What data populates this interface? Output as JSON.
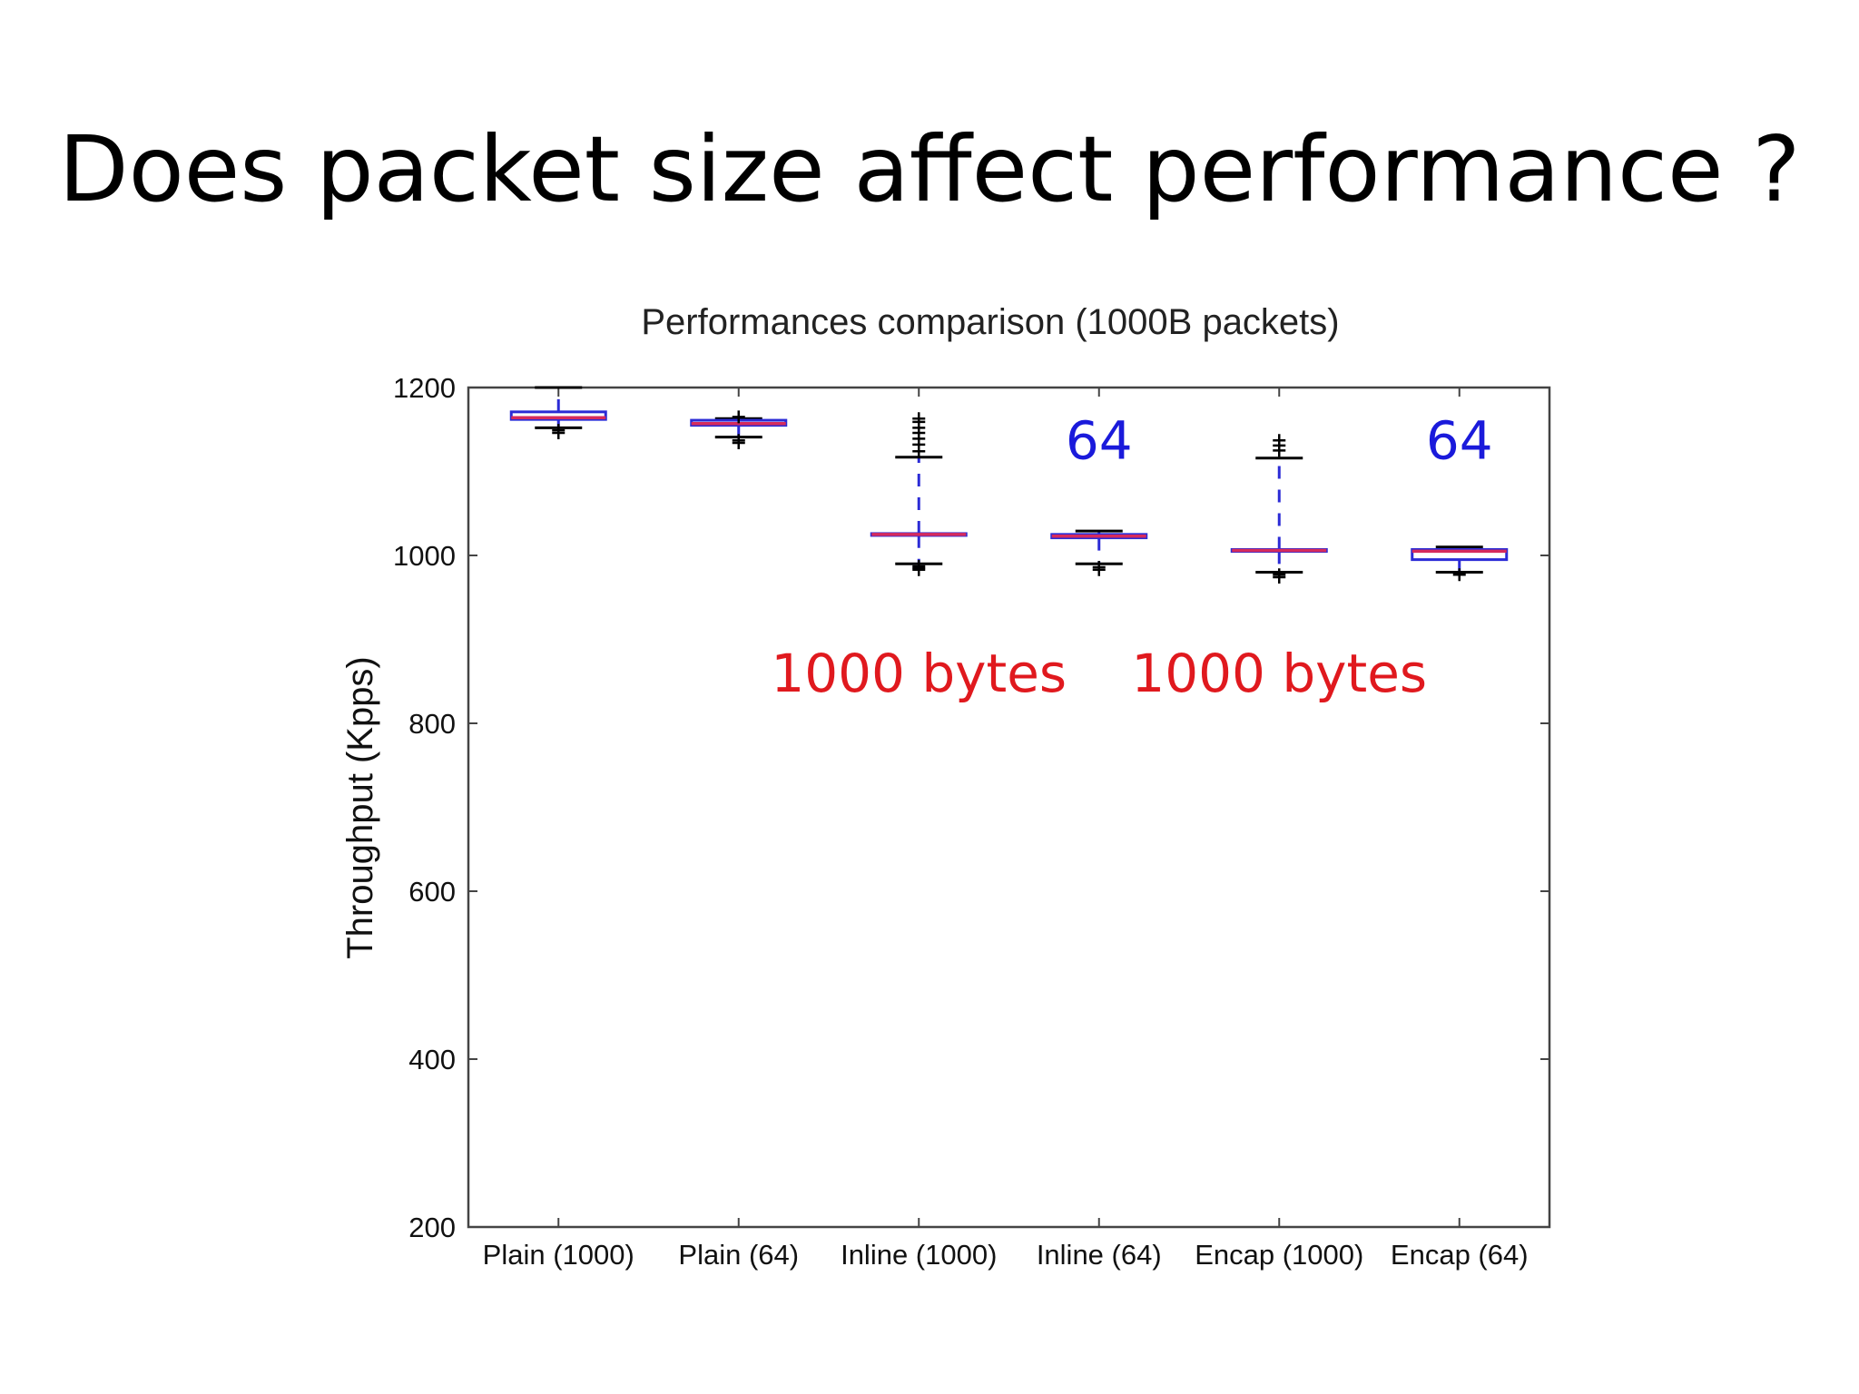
{
  "slide": {
    "title": "Does packet size affect performance ?"
  },
  "chart_data": {
    "type": "box",
    "title": "Performances comparison (1000B packets)",
    "xlabel": "",
    "ylabel": "Throughput (Kpps)",
    "ylim": [
      200,
      1200
    ],
    "yticks": [
      200,
      400,
      600,
      800,
      1000,
      1200
    ],
    "grid": false,
    "categories": [
      "Plain (1000)",
      "Plain (64)",
      "Inline (1000)",
      "Inline (64)",
      "Encap (1000)",
      "Encap (64)"
    ],
    "boxes": [
      {
        "category": "Plain (1000)",
        "whisker_low": 1152,
        "q1": 1162,
        "median": 1164,
        "q3": 1171,
        "whisker_high": 1200,
        "outliers": [
          1149,
          1146
        ]
      },
      {
        "category": "Plain (64)",
        "whisker_low": 1141,
        "q1": 1155,
        "median": 1157,
        "q3": 1161,
        "whisker_high": 1163,
        "outliers": [
          1137,
          1134,
          1165
        ]
      },
      {
        "category": "Inline (1000)",
        "whisker_low": 990,
        "q1": 1024,
        "median": 1025,
        "q3": 1026,
        "whisker_high": 1117,
        "outliers": [
          1124,
          1132,
          1139,
          1146,
          1152,
          1159,
          1163,
          987,
          985,
          983
        ]
      },
      {
        "category": "Inline (64)",
        "whisker_low": 990,
        "q1": 1021,
        "median": 1023,
        "q3": 1025,
        "whisker_high": 1029,
        "outliers": [
          986,
          983
        ]
      },
      {
        "category": "Encap (1000)",
        "whisker_low": 980,
        "q1": 1005,
        "median": 1006,
        "q3": 1007,
        "whisker_high": 1116,
        "outliers": [
          1125,
          1131,
          1137,
          977,
          974
        ]
      },
      {
        "category": "Encap (64)",
        "whisker_low": 980,
        "q1": 995,
        "median": 1005,
        "q3": 1007,
        "whisker_high": 1010,
        "outliers": [
          977
        ]
      }
    ],
    "annotations": [
      {
        "text": "64",
        "color": "#1a1adb",
        "x": "Inline (64)",
        "y": 1115
      },
      {
        "text": "64",
        "color": "#1a1adb",
        "x": "Encap (64)",
        "y": 1115
      },
      {
        "text": "1000 bytes",
        "color": "#e0191e",
        "x": "Inline (1000)",
        "y": 838
      },
      {
        "text": "1000 bytes",
        "color": "#e0191e",
        "x": "Encap (1000)",
        "y": 838
      }
    ],
    "colors": {
      "box": "#2b2bd6",
      "median": "#d62b5c",
      "whisker": "#2b2bd6",
      "cap": "#000000",
      "flier": "#000000",
      "axes": "#444444"
    }
  }
}
